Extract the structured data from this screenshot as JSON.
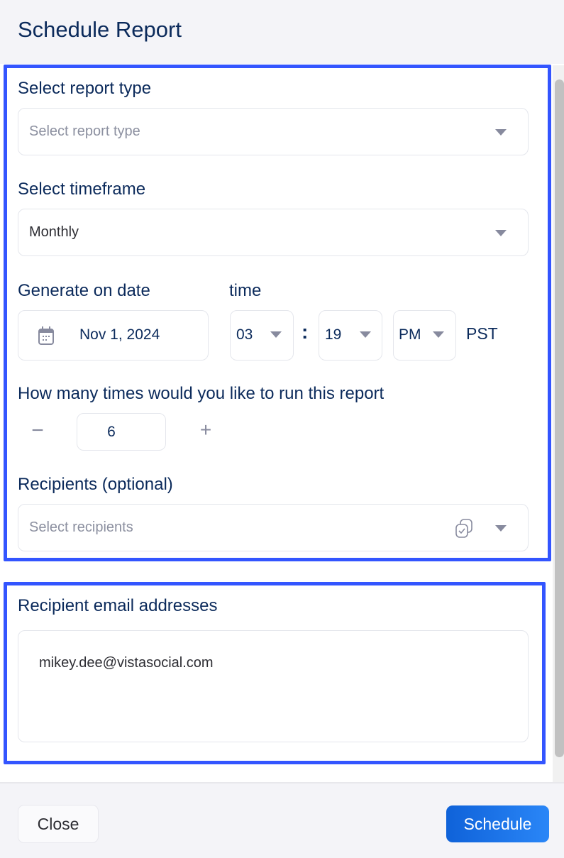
{
  "dialog": {
    "title": "Schedule Report"
  },
  "report_type": {
    "label": "Select report type",
    "placeholder": "Select report type"
  },
  "timeframe": {
    "label": "Select timeframe",
    "value": "Monthly"
  },
  "generate": {
    "date_label": "Generate on date",
    "time_label": "time",
    "date": "Nov 1, 2024",
    "hour": "03",
    "separator": ":",
    "minute": "19",
    "ampm": "PM",
    "timezone": "PST"
  },
  "runs": {
    "label": "How many times would you like to run this report",
    "value": "6",
    "minus": "−",
    "plus": "+"
  },
  "recipients": {
    "label": "Recipients (optional)",
    "placeholder": "Select recipients"
  },
  "emails": {
    "label": "Recipient email addresses",
    "value": "mikey.dee@vistasocial.com"
  },
  "footer": {
    "close_label": "Close",
    "schedule_label": "Schedule"
  },
  "colors": {
    "primary": "#1a6fe8",
    "text": "#0b2a5b",
    "annotation": "#3355ff"
  }
}
